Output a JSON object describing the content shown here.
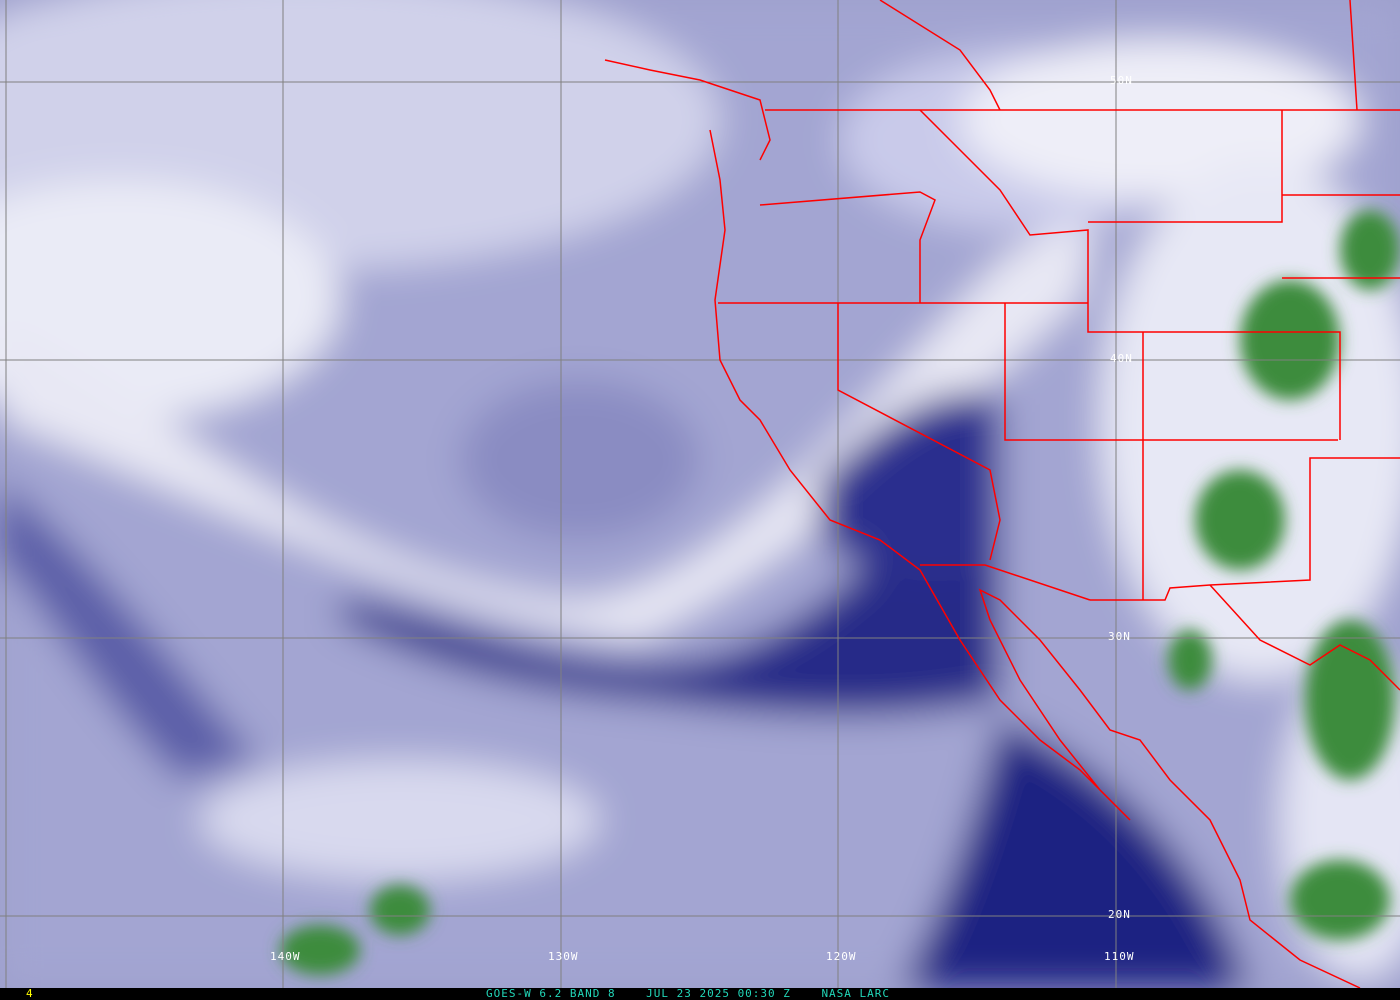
{
  "image": {
    "caption_parts": {
      "satellite": "GOES-W 6.2 BAND 8",
      "datetime": "JUL 23 2025 00:30 Z",
      "source": "NASA LARC"
    },
    "frame_number": "4",
    "latitude_labels": [
      "50N",
      "40N",
      "30N",
      "20N"
    ],
    "longitude_labels": [
      "140W",
      "130W",
      "120W",
      "110W"
    ],
    "colors": {
      "moist_high": "#ffffff",
      "cold_tops": "#3c8c3c",
      "dry": "#101070",
      "borders": "#ff0000",
      "grid": "#808080",
      "caption": "#22d6b8",
      "frame_number": "#ffff00"
    }
  }
}
